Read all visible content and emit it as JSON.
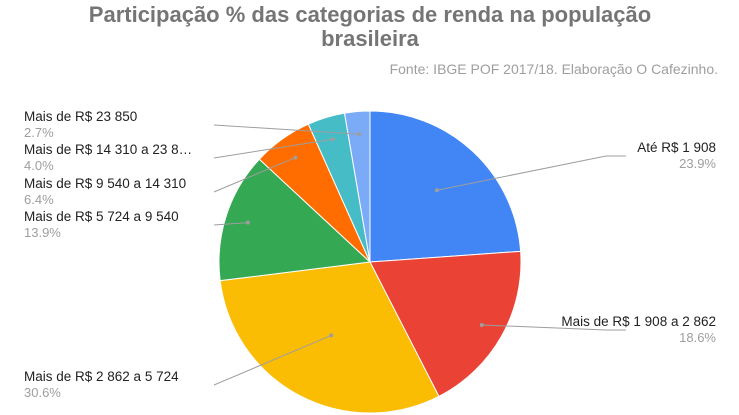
{
  "chart_data": {
    "type": "pie",
    "title": "Participação % das categorias de renda na população brasileira",
    "title_lines": [
      "Participação % das categorias de renda na população",
      "brasileira"
    ],
    "subtitle": "Fonte: IBGE POF 2017/18. Elaboração O Cafezinho.",
    "slices": [
      {
        "label": "Até R$ 1 908",
        "value": 23.9,
        "pct_label": "23.9%",
        "color": "#4285f4"
      },
      {
        "label": "Mais de R$ 1 908 a 2 862",
        "value": 18.6,
        "pct_label": "18.6%",
        "color": "#ea4335"
      },
      {
        "label": "Mais de R$ 2 862 a 5 724",
        "value": 30.6,
        "pct_label": "30.6%",
        "color": "#fbbc04"
      },
      {
        "label": "Mais de R$ 5 724 a 9 540",
        "value": 13.9,
        "pct_label": "13.9%",
        "color": "#34a853"
      },
      {
        "label": "Mais de R$ 9 540 a 14 310",
        "value": 6.4,
        "pct_label": "6.4%",
        "color": "#ff6d01"
      },
      {
        "label": "Mais de R$ 14 310 a 23 8…",
        "value": 4.0,
        "pct_label": "4.0%",
        "color": "#46bdc6"
      },
      {
        "label": "Mais de R$ 23 850",
        "value": 2.7,
        "pct_label": "2.7%",
        "color": "#7baaf7"
      }
    ],
    "legend": "none"
  }
}
